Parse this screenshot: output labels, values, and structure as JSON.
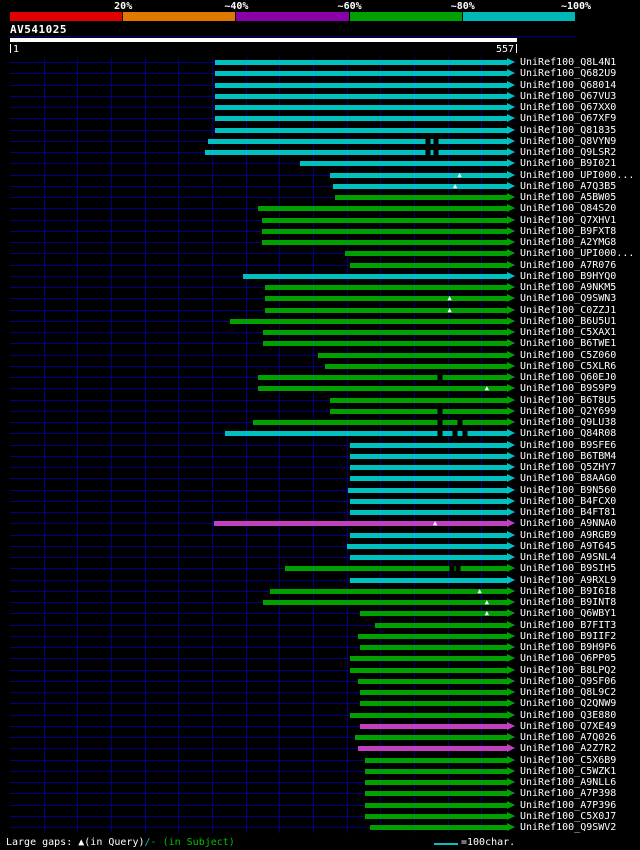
{
  "scale": {
    "segments": [
      {
        "label": "20%",
        "color": "#e00000"
      },
      {
        "label": "~40%",
        "color": "#e07800"
      },
      {
        "label": "~60%",
        "color": "#8800a8"
      },
      {
        "label": "~80%",
        "color": "#00a000"
      },
      {
        "label": "~100%",
        "color": "#00b8b8"
      }
    ]
  },
  "query": {
    "name": "AV541025",
    "start_label": "1",
    "end_label": "557"
  },
  "footer": {
    "gap_text": [
      {
        "text": "Large gaps: ",
        "color": "#ffffff"
      },
      {
        "text": "▲",
        "color": "#ffffff"
      },
      {
        "text": "(in Query)",
        "color": "#ffffff"
      },
      {
        "text": "/",
        "color": "#00c0c0"
      },
      {
        "text": "- ",
        "color": "#00c000"
      },
      {
        "text": "(in Subject)",
        "color": "#00c000"
      }
    ],
    "unit_label": "=100char."
  },
  "colors": {
    "cyan": "#00c0c0",
    "green": "#00a000",
    "magenta": "#c040c0"
  },
  "chart_data": {
    "type": "alignment-overview",
    "title": "AV541025",
    "query": {
      "name": "AV541025",
      "start": 1,
      "end": 557
    },
    "similarity_legend": [
      "20%",
      "~40%",
      "~60%",
      "~80%",
      "~100%"
    ],
    "unit": "1 line segment = 100 characters",
    "hits": [
      {
        "id": "UniRef100_Q8L4N1",
        "color": "cyan",
        "qstart": 227,
        "qend": 557
      },
      {
        "id": "UniRef100_Q682U9",
        "color": "cyan",
        "qstart": 227,
        "qend": 557
      },
      {
        "id": "UniRef100_Q68014",
        "color": "cyan",
        "qstart": 227,
        "qend": 557
      },
      {
        "id": "UniRef100_Q67VU3",
        "color": "cyan",
        "qstart": 227,
        "qend": 557
      },
      {
        "id": "UniRef100_Q67XX0",
        "color": "cyan",
        "qstart": 227,
        "qend": 557
      },
      {
        "id": "UniRef100_Q67XF9",
        "color": "cyan",
        "qstart": 227,
        "qend": 557
      },
      {
        "id": "UniRef100_Q81835",
        "color": "cyan",
        "qstart": 227,
        "qend": 557
      },
      {
        "id": "UniRef100_Q8VYN9",
        "color": "cyan",
        "qstart": 219,
        "qend": 557,
        "subject_gaps": [
          461,
          470
        ]
      },
      {
        "id": "UniRef100_Q9LSR2",
        "color": "cyan",
        "qstart": 216,
        "qend": 557,
        "subject_gaps": [
          461,
          470
        ]
      },
      {
        "id": "UniRef100_B9I021",
        "color": "cyan",
        "qstart": 320,
        "qend": 557
      },
      {
        "id": "UniRef100_UPI000...",
        "color": "cyan",
        "qstart": 353,
        "qend": 557,
        "query_gaps": [
          496
        ]
      },
      {
        "id": "UniRef100_A7Q3B5",
        "color": "cyan",
        "qstart": 357,
        "qend": 557,
        "query_gaps": [
          491
        ]
      },
      {
        "id": "UniRef100_A5BW05",
        "color": "green",
        "qstart": 359,
        "qend": 557
      },
      {
        "id": "UniRef100_Q84S20",
        "color": "green",
        "qstart": 274,
        "qend": 557
      },
      {
        "id": "UniRef100_Q7XHV1",
        "color": "green",
        "qstart": 278,
        "qend": 557
      },
      {
        "id": "UniRef100_B9FXT8",
        "color": "green",
        "qstart": 278,
        "qend": 557
      },
      {
        "id": "UniRef100_A2YMG8",
        "color": "green",
        "qstart": 278,
        "qend": 557
      },
      {
        "id": "UniRef100_UPI000...",
        "color": "green",
        "qstart": 370,
        "qend": 557
      },
      {
        "id": "UniRef100_A7R076",
        "color": "green",
        "qstart": 375,
        "qend": 557
      },
      {
        "id": "UniRef100_B9HYQ0",
        "color": "cyan",
        "qstart": 258,
        "qend": 557
      },
      {
        "id": "UniRef100_A9NKM5",
        "color": "green",
        "qstart": 282,
        "qend": 557
      },
      {
        "id": "UniRef100_Q9SWN3",
        "color": "green",
        "qstart": 282,
        "qend": 557,
        "query_gaps": [
          485
        ]
      },
      {
        "id": "UniRef100_C0ZZJ1",
        "color": "green",
        "qstart": 282,
        "qend": 557,
        "query_gaps": [
          485
        ]
      },
      {
        "id": "UniRef100_B6U5U1",
        "color": "green",
        "qstart": 243,
        "qend": 557
      },
      {
        "id": "UniRef100_C5XAX1",
        "color": "green",
        "qstart": 280,
        "qend": 557
      },
      {
        "id": "UniRef100_B6TWE1",
        "color": "green",
        "qstart": 280,
        "qend": 557
      },
      {
        "id": "UniRef100_C5Z060",
        "color": "green",
        "qstart": 340,
        "qend": 557
      },
      {
        "id": "UniRef100_C5XLR6",
        "color": "green",
        "qstart": 348,
        "qend": 557
      },
      {
        "id": "UniRef100_Q60EJ0",
        "color": "green",
        "qstart": 274,
        "qend": 557,
        "subject_gaps": [
          474
        ]
      },
      {
        "id": "UniRef100_B9S9P9",
        "color": "green",
        "qstart": 274,
        "qend": 557,
        "query_gaps": [
          526
        ]
      },
      {
        "id": "UniRef100_B6T8U5",
        "color": "green",
        "qstart": 353,
        "qend": 557
      },
      {
        "id": "UniRef100_Q2Y699",
        "color": "green",
        "qstart": 353,
        "qend": 557,
        "subject_gaps": [
          474
        ]
      },
      {
        "id": "UniRef100_Q9LU38",
        "color": "green",
        "qstart": 269,
        "qend": 557,
        "subject_gaps": [
          474,
          496
        ]
      },
      {
        "id": "UniRef100_Q84R08",
        "color": "cyan",
        "qstart": 238,
        "qend": 557,
        "subject_gaps": [
          474,
          491,
          502
        ]
      },
      {
        "id": "UniRef100_B9SFE6",
        "color": "cyan",
        "qstart": 375,
        "qend": 557
      },
      {
        "id": "UniRef100_B6TBM4",
        "color": "cyan",
        "qstart": 375,
        "qend": 557
      },
      {
        "id": "UniRef100_Q5ZHY7",
        "color": "cyan",
        "qstart": 375,
        "qend": 557
      },
      {
        "id": "UniRef100_B8AAG0",
        "color": "cyan",
        "qstart": 375,
        "qend": 557
      },
      {
        "id": "UniRef100_B9N560",
        "color": "cyan",
        "qstart": 373,
        "qend": 557
      },
      {
        "id": "UniRef100_B4FCX0",
        "color": "cyan",
        "qstart": 375,
        "qend": 557
      },
      {
        "id": "UniRef100_B4FT81",
        "color": "cyan",
        "qstart": 375,
        "qend": 557
      },
      {
        "id": "UniRef100_A9NNA0",
        "color": "magenta",
        "qstart": 225,
        "qend": 557,
        "query_gaps": [
          469
        ]
      },
      {
        "id": "UniRef100_A9RGB9",
        "color": "cyan",
        "qstart": 375,
        "qend": 557
      },
      {
        "id": "UniRef100_A9T645",
        "color": "cyan",
        "qstart": 372,
        "qend": 557
      },
      {
        "id": "UniRef100_A9SNL4",
        "color": "cyan",
        "qstart": 375,
        "qend": 557
      },
      {
        "id": "UniRef100_B9SIH5",
        "color": "green",
        "qstart": 304,
        "qend": 557,
        "subject_gaps": [
          488,
          494
        ]
      },
      {
        "id": "UniRef100_A9RXL9",
        "color": "cyan",
        "qstart": 375,
        "qend": 557
      },
      {
        "id": "UniRef100_B9I6I8",
        "color": "green",
        "qstart": 287,
        "qend": 557,
        "query_gaps": [
          518
        ]
      },
      {
        "id": "UniRef100_B9INT8",
        "color": "green",
        "qstart": 280,
        "qend": 557,
        "query_gaps": [
          526
        ]
      },
      {
        "id": "UniRef100_Q6WBY1",
        "color": "green",
        "qstart": 386,
        "qend": 557,
        "query_gaps": [
          526
        ]
      },
      {
        "id": "UniRef100_B7FIT3",
        "color": "green",
        "qstart": 403,
        "qend": 557
      },
      {
        "id": "UniRef100_B9IIF2",
        "color": "green",
        "qstart": 384,
        "qend": 557
      },
      {
        "id": "UniRef100_B9H9P6",
        "color": "green",
        "qstart": 386,
        "qend": 557
      },
      {
        "id": "UniRef100_Q6PP05",
        "color": "green",
        "qstart": 375,
        "qend": 557
      },
      {
        "id": "UniRef100_B8LPQ2",
        "color": "green",
        "qstart": 375,
        "qend": 557
      },
      {
        "id": "UniRef100_Q9SF06",
        "color": "green",
        "qstart": 384,
        "qend": 557
      },
      {
        "id": "UniRef100_Q8L9C2",
        "color": "green",
        "qstart": 386,
        "qend": 557
      },
      {
        "id": "UniRef100_Q2QNW9",
        "color": "green",
        "qstart": 386,
        "qend": 557
      },
      {
        "id": "UniRef100_Q3E880",
        "color": "green",
        "qstart": 375,
        "qend": 557
      },
      {
        "id": "UniRef100_Q7XE49",
        "color": "magenta",
        "qstart": 386,
        "qend": 557
      },
      {
        "id": "UniRef100_A7Q026",
        "color": "green",
        "qstart": 381,
        "qend": 557
      },
      {
        "id": "UniRef100_A2Z7R2",
        "color": "magenta",
        "qstart": 384,
        "qend": 557
      },
      {
        "id": "UniRef100_C5X6B9",
        "color": "green",
        "qstart": 392,
        "qend": 557
      },
      {
        "id": "UniRef100_C5WZK1",
        "color": "green",
        "qstart": 392,
        "qend": 557
      },
      {
        "id": "UniRef100_A9NLL6",
        "color": "green",
        "qstart": 392,
        "qend": 557
      },
      {
        "id": "UniRef100_A7P398",
        "color": "green",
        "qstart": 392,
        "qend": 557
      },
      {
        "id": "UniRef100_A7P396",
        "color": "green",
        "qstart": 392,
        "qend": 557
      },
      {
        "id": "UniRef100_C5X0J7",
        "color": "green",
        "qstart": 392,
        "qend": 557
      },
      {
        "id": "UniRef100_Q9SWV2",
        "color": "green",
        "qstart": 397,
        "qend": 557
      }
    ]
  }
}
